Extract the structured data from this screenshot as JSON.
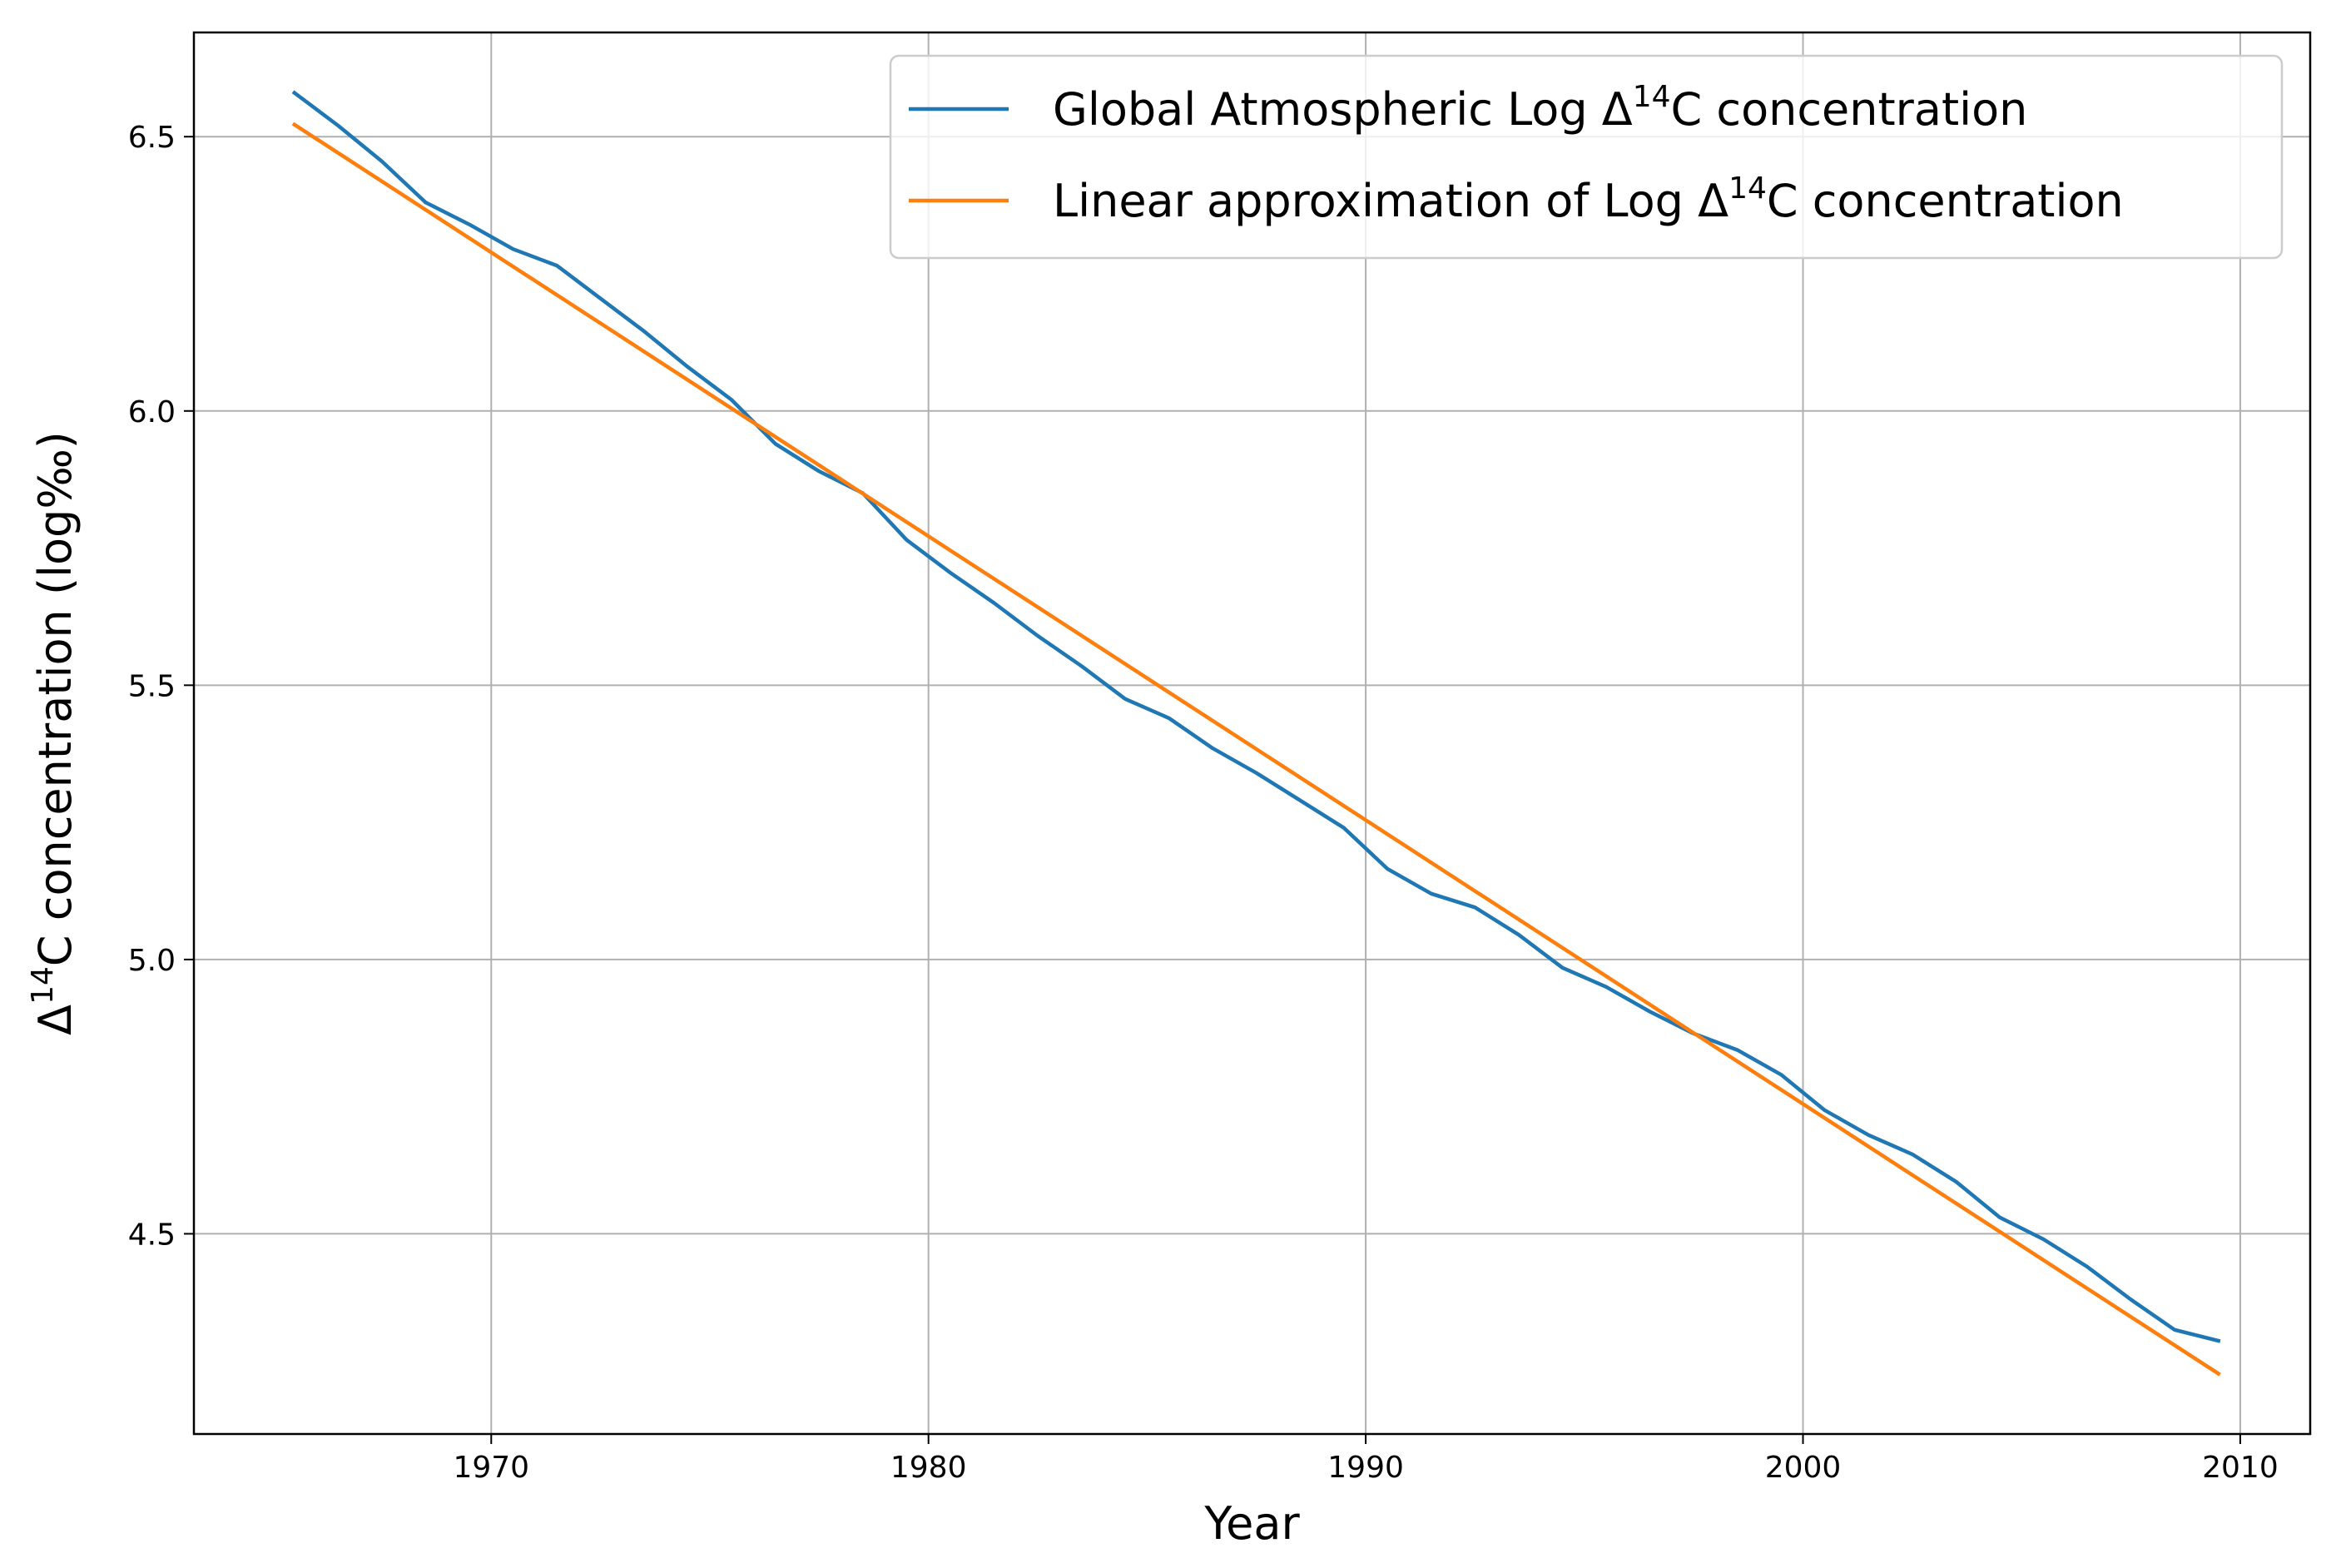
{
  "chart_data": {
    "type": "line",
    "title": "",
    "xlabel": "Year",
    "ylabel": "Δ14C concentration (log‰)",
    "ylabel_parts": {
      "pre": "Δ",
      "sup": "14",
      "post": "C concentration (log‰)"
    },
    "xlim": [
      1963.2,
      2011.6
    ],
    "ylim": [
      4.135,
      6.69
    ],
    "x_ticks": [
      1970,
      1980,
      1990,
      2000,
      2010
    ],
    "x_tick_labels": [
      "1970",
      "1980",
      "1990",
      "2000",
      "2010"
    ],
    "y_ticks": [
      4.5,
      5.0,
      5.5,
      6.0,
      6.5
    ],
    "y_tick_labels": [
      "4.5",
      "5.0",
      "5.5",
      "6.0",
      "6.5"
    ],
    "grid": true,
    "legend_position": "top-right",
    "series": [
      {
        "name": "Global Atmospheric Log Δ14C concentration",
        "label_parts": {
          "pre": "Global Atmospheric Log Δ",
          "sup": "14",
          "post": "C concentration"
        },
        "color": "#1f77b4",
        "x": [
          1965.5,
          1966.5,
          1967.5,
          1968.5,
          1969.5,
          1970.5,
          1971.5,
          1972.5,
          1973.5,
          1974.5,
          1975.5,
          1976.5,
          1977.5,
          1978.5,
          1979.5,
          1980.5,
          1981.5,
          1982.5,
          1983.5,
          1984.5,
          1985.5,
          1986.5,
          1987.5,
          1988.5,
          1989.5,
          1990.5,
          1991.5,
          1992.5,
          1993.5,
          1994.5,
          1995.5,
          1996.5,
          1997.5,
          1998.5,
          1999.5,
          2000.5,
          2001.5,
          2002.5,
          2003.5,
          2004.5,
          2005.5,
          2006.5,
          2007.5,
          2008.5,
          2009.5
        ],
        "values": [
          6.58,
          6.52,
          6.455,
          6.38,
          6.34,
          6.295,
          6.265,
          6.205,
          6.145,
          6.08,
          6.02,
          5.94,
          5.89,
          5.85,
          5.765,
          5.705,
          5.65,
          5.59,
          5.535,
          5.475,
          5.44,
          5.385,
          5.34,
          5.29,
          5.24,
          5.165,
          5.12,
          5.095,
          5.045,
          4.985,
          4.95,
          4.905,
          4.865,
          4.835,
          4.79,
          4.725,
          4.68,
          4.645,
          4.595,
          4.53,
          4.49,
          4.44,
          4.38,
          4.325,
          4.305
        ]
      },
      {
        "name": "Linear approximation of Log Δ14C concentration",
        "label_parts": {
          "pre": "Linear approximation of Log Δ",
          "sup": "14",
          "post": "C concentration"
        },
        "color": "#ff7f0e",
        "x": [
          1965.5,
          2009.5
        ],
        "values": [
          6.522,
          4.245
        ]
      }
    ]
  }
}
